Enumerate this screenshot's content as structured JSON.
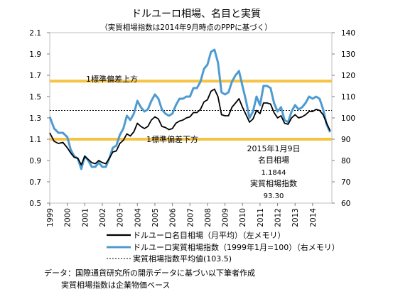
{
  "chart_data": {
    "type": "line",
    "title": "ドルユーロ相場、名目と実質",
    "subtitle": "（実質相場指数は2014年9月時点のPPPに基づく）",
    "x_categories": [
      "1999",
      "2000",
      "2001",
      "2002",
      "2003",
      "2004",
      "2005",
      "2006",
      "2007",
      "2008",
      "2009",
      "2010",
      "2011",
      "2012",
      "2013",
      "2014"
    ],
    "x_range": [
      1999.0,
      2015.1
    ],
    "y_left": {
      "min": 0.5,
      "max": 2.1,
      "ticks": [
        "0.5",
        "0.7",
        "0.9",
        "1.1",
        "1.3",
        "1.5",
        "1.7",
        "1.9",
        "2.1"
      ]
    },
    "y_right": {
      "min": 60,
      "max": 140,
      "ticks": [
        "60",
        "70",
        "80",
        "90",
        "100",
        "110",
        "120",
        "130",
        "140"
      ]
    },
    "bands": [
      {
        "label": "1標準偏差上方",
        "y_left": 1.645,
        "color": "#F6C342"
      },
      {
        "label": "1標準偏差下方",
        "y_left": 1.1,
        "color": "#F6C342"
      }
    ],
    "series": [
      {
        "name": "ドルユーロ名目相場（月平均）（左メモリ）",
        "axis": "left",
        "color": "#000000",
        "points": [
          [
            1999.0,
            1.16
          ],
          [
            1999.25,
            1.08
          ],
          [
            1999.5,
            1.06
          ],
          [
            1999.75,
            1.07
          ],
          [
            2000.0,
            1.02
          ],
          [
            2000.2,
            0.97
          ],
          [
            2000.4,
            0.93
          ],
          [
            2000.6,
            0.92
          ],
          [
            2000.8,
            0.86
          ],
          [
            2001.0,
            0.94
          ],
          [
            2001.2,
            0.91
          ],
          [
            2001.4,
            0.88
          ],
          [
            2001.6,
            0.87
          ],
          [
            2001.8,
            0.9
          ],
          [
            2002.0,
            0.88
          ],
          [
            2002.2,
            0.87
          ],
          [
            2002.4,
            0.92
          ],
          [
            2002.6,
            0.98
          ],
          [
            2002.8,
            0.99
          ],
          [
            2003.0,
            1.06
          ],
          [
            2003.2,
            1.09
          ],
          [
            2003.4,
            1.15
          ],
          [
            2003.6,
            1.13
          ],
          [
            2003.8,
            1.17
          ],
          [
            2004.0,
            1.25
          ],
          [
            2004.2,
            1.22
          ],
          [
            2004.4,
            1.2
          ],
          [
            2004.6,
            1.22
          ],
          [
            2004.8,
            1.28
          ],
          [
            2005.0,
            1.31
          ],
          [
            2005.2,
            1.29
          ],
          [
            2005.4,
            1.22
          ],
          [
            2005.6,
            1.21
          ],
          [
            2005.8,
            1.19
          ],
          [
            2006.0,
            1.2
          ],
          [
            2006.2,
            1.25
          ],
          [
            2006.4,
            1.27
          ],
          [
            2006.6,
            1.28
          ],
          [
            2006.8,
            1.3
          ],
          [
            2007.0,
            1.31
          ],
          [
            2007.2,
            1.35
          ],
          [
            2007.4,
            1.35
          ],
          [
            2007.6,
            1.38
          ],
          [
            2007.8,
            1.45
          ],
          [
            2008.0,
            1.47
          ],
          [
            2008.2,
            1.55
          ],
          [
            2008.4,
            1.57
          ],
          [
            2008.6,
            1.5
          ],
          [
            2008.8,
            1.33
          ],
          [
            2009.0,
            1.32
          ],
          [
            2009.2,
            1.32
          ],
          [
            2009.4,
            1.4
          ],
          [
            2009.6,
            1.44
          ],
          [
            2009.8,
            1.48
          ],
          [
            2010.0,
            1.4
          ],
          [
            2010.2,
            1.33
          ],
          [
            2010.4,
            1.26
          ],
          [
            2010.6,
            1.29
          ],
          [
            2010.8,
            1.37
          ],
          [
            2011.0,
            1.34
          ],
          [
            2011.2,
            1.44
          ],
          [
            2011.4,
            1.44
          ],
          [
            2011.6,
            1.43
          ],
          [
            2011.8,
            1.35
          ],
          [
            2012.0,
            1.3
          ],
          [
            2012.2,
            1.32
          ],
          [
            2012.4,
            1.25
          ],
          [
            2012.6,
            1.24
          ],
          [
            2012.8,
            1.3
          ],
          [
            2013.0,
            1.33
          ],
          [
            2013.2,
            1.3
          ],
          [
            2013.4,
            1.31
          ],
          [
            2013.6,
            1.33
          ],
          [
            2013.8,
            1.36
          ],
          [
            2014.0,
            1.36
          ],
          [
            2014.2,
            1.38
          ],
          [
            2014.4,
            1.37
          ],
          [
            2014.6,
            1.33
          ],
          [
            2014.8,
            1.25
          ],
          [
            2015.0,
            1.18
          ]
        ]
      },
      {
        "name": "ドルユーロ実質相場指数（1999年1月=100）（右メモリ）",
        "axis": "right",
        "color": "#4E9BD2",
        "points": [
          [
            1999.0,
            100.5
          ],
          [
            1999.25,
            95
          ],
          [
            1999.5,
            93
          ],
          [
            1999.75,
            93
          ],
          [
            2000.0,
            91
          ],
          [
            2000.2,
            85
          ],
          [
            2000.4,
            82
          ],
          [
            2000.6,
            81
          ],
          [
            2000.8,
            76
          ],
          [
            2001.0,
            82
          ],
          [
            2001.2,
            80
          ],
          [
            2001.4,
            77
          ],
          [
            2001.6,
            77
          ],
          [
            2001.8,
            79
          ],
          [
            2002.0,
            77
          ],
          [
            2002.2,
            77
          ],
          [
            2002.4,
            81
          ],
          [
            2002.6,
            86
          ],
          [
            2002.8,
            87
          ],
          [
            2003.0,
            92
          ],
          [
            2003.2,
            95
          ],
          [
            2003.4,
            101
          ],
          [
            2003.6,
            99
          ],
          [
            2003.8,
            102
          ],
          [
            2004.0,
            108
          ],
          [
            2004.2,
            105
          ],
          [
            2004.4,
            103
          ],
          [
            2004.6,
            104
          ],
          [
            2004.8,
            108
          ],
          [
            2005.0,
            111
          ],
          [
            2005.2,
            109
          ],
          [
            2005.4,
            104
          ],
          [
            2005.6,
            102
          ],
          [
            2005.8,
            101
          ],
          [
            2006.0,
            102
          ],
          [
            2006.2,
            106
          ],
          [
            2006.4,
            109
          ],
          [
            2006.6,
            109
          ],
          [
            2006.8,
            110
          ],
          [
            2007.0,
            110
          ],
          [
            2007.2,
            114
          ],
          [
            2007.4,
            114
          ],
          [
            2007.6,
            117
          ],
          [
            2007.8,
            123
          ],
          [
            2008.0,
            125
          ],
          [
            2008.2,
            131
          ],
          [
            2008.4,
            132
          ],
          [
            2008.6,
            126
          ],
          [
            2008.8,
            112
          ],
          [
            2009.0,
            111
          ],
          [
            2009.2,
            112
          ],
          [
            2009.4,
            117
          ],
          [
            2009.6,
            120
          ],
          [
            2009.8,
            122
          ],
          [
            2010.0,
            115
          ],
          [
            2010.2,
            108
          ],
          [
            2010.4,
            100
          ],
          [
            2010.6,
            103
          ],
          [
            2010.8,
            110
          ],
          [
            2011.0,
            106
          ],
          [
            2011.2,
            115
          ],
          [
            2011.4,
            115
          ],
          [
            2011.6,
            114
          ],
          [
            2011.8,
            107
          ],
          [
            2012.0,
            103
          ],
          [
            2012.2,
            105
          ],
          [
            2012.4,
            99
          ],
          [
            2012.6,
            98
          ],
          [
            2012.8,
            103
          ],
          [
            2013.0,
            106
          ],
          [
            2013.2,
            104
          ],
          [
            2013.4,
            105
          ],
          [
            2013.6,
            107
          ],
          [
            2013.8,
            110
          ],
          [
            2014.0,
            109
          ],
          [
            2014.2,
            110
          ],
          [
            2014.4,
            109
          ],
          [
            2014.6,
            104
          ],
          [
            2014.8,
            97
          ],
          [
            2015.0,
            93.3
          ]
        ]
      },
      {
        "name": "実質相場指数平均値(103.5)",
        "axis": "right",
        "style": "dashed",
        "color": "#000000",
        "value": 103.5
      }
    ],
    "annotation": [
      "2015年1月9日",
      "名目相場",
      "1.1844",
      "実質相場指数",
      "93.30"
    ],
    "footnotes": [
      "データ：国際通貨研究所の開示データに基づい以下筆者作成",
      "実質相場指数は企業物価ベース"
    ],
    "grid": false,
    "legend_position": "bottom"
  }
}
